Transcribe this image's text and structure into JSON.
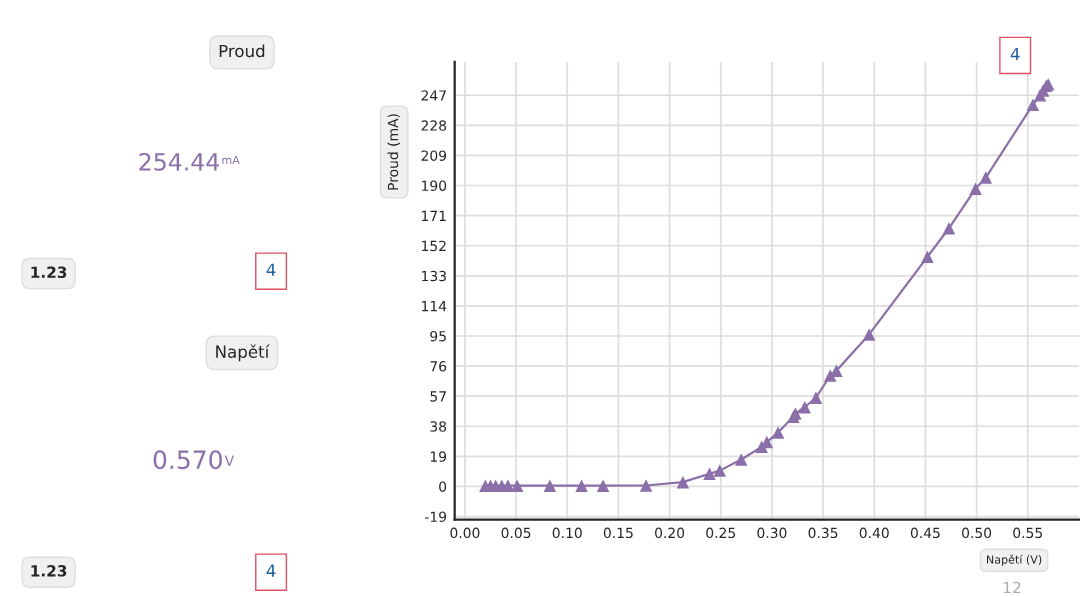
{
  "chart_data": {
    "type": "line",
    "xlabel": "Napětí (V)",
    "ylabel": "Proud (mA)",
    "x": [
      0.02,
      0.025,
      0.03,
      0.036,
      0.042,
      0.051,
      0.083,
      0.114,
      0.135,
      0.177,
      0.213,
      0.239,
      0.249,
      0.27,
      0.29,
      0.295,
      0.306,
      0.321,
      0.323,
      0.332,
      0.343,
      0.357,
      0.363,
      0.395,
      0.452,
      0.473,
      0.499,
      0.509,
      0.555,
      0.562,
      0.565,
      0.568,
      0.57
    ],
    "series": [
      {
        "color": "#8a6fa8",
        "values": [
          0.5,
          0.5,
          0.5,
          0.5,
          0.5,
          0.5,
          0.5,
          0.5,
          0.5,
          0.6,
          2.7,
          8,
          10,
          17,
          25,
          28,
          34,
          44,
          46,
          50,
          56,
          70,
          73,
          96,
          145,
          163,
          188,
          195,
          241,
          247,
          250,
          253,
          254
        ]
      }
    ],
    "xlim": [
      -0.01,
      0.6
    ],
    "ylim": [
      -21,
      268
    ],
    "xticks": [
      {
        "value": 0.0,
        "label": "0.00"
      },
      0.05,
      {
        "value": 0.1,
        "label": "0.10"
      },
      0.15,
      {
        "value": 0.2,
        "label": "0.20"
      },
      0.25,
      {
        "value": 0.3,
        "label": "0.30"
      },
      0.35,
      {
        "value": 0.4,
        "label": "0.40"
      },
      0.45,
      {
        "value": 0.5,
        "label": "0.50"
      },
      0.55
    ],
    "yticks": [
      -19,
      0,
      19,
      38,
      57,
      76,
      95,
      114,
      133,
      152,
      171,
      190,
      209,
      228,
      247
    ],
    "grid": true,
    "marker": "triangle",
    "line_style": "solid",
    "legend": false,
    "annotations": [
      "Proud",
      "254.44",
      "mA",
      "1.23",
      "4",
      "Napětí",
      "0.570",
      "V",
      "1.23",
      "4",
      "4",
      "12"
    ]
  }
}
